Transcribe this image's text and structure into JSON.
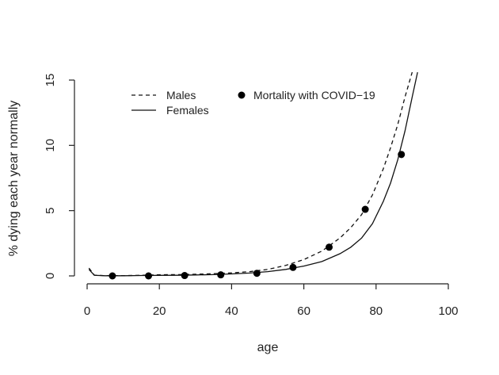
{
  "chart_data": {
    "type": "line",
    "xlabel": "age",
    "ylabel": "% dying each year normally",
    "xlim": [
      0,
      100
    ],
    "ylim": [
      0,
      15
    ],
    "x_ticks": [
      "0",
      "20",
      "40",
      "60",
      "80",
      "100"
    ],
    "y_ticks": [
      "0",
      "5",
      "10",
      "15"
    ],
    "legend_position": "top",
    "series": [
      {
        "name": "Males",
        "style": "dashed",
        "color": "#111111",
        "x": [
          0.5,
          2,
          5,
          10,
          15,
          20,
          25,
          30,
          35,
          40,
          45,
          50,
          55,
          60,
          65,
          70,
          73,
          76,
          79,
          82,
          84,
          86,
          88,
          90
        ],
        "y": [
          0.6,
          0.06,
          0.02,
          0.02,
          0.05,
          0.09,
          0.1,
          0.13,
          0.17,
          0.23,
          0.33,
          0.5,
          0.8,
          1.25,
          1.9,
          2.9,
          3.7,
          4.7,
          6.2,
          8.2,
          9.8,
          11.6,
          13.7,
          15.6
        ]
      },
      {
        "name": "Females",
        "style": "solid",
        "color": "#111111",
        "x": [
          0.5,
          2,
          5,
          10,
          15,
          20,
          25,
          30,
          35,
          40,
          45,
          50,
          55,
          60,
          65,
          70,
          73,
          76,
          79,
          82,
          84,
          86,
          88,
          90,
          91.5
        ],
        "y": [
          0.5,
          0.05,
          0.01,
          0.01,
          0.03,
          0.04,
          0.05,
          0.07,
          0.1,
          0.15,
          0.22,
          0.33,
          0.5,
          0.75,
          1.1,
          1.7,
          2.2,
          2.9,
          4.0,
          5.7,
          7.1,
          8.9,
          11.1,
          13.7,
          15.6
        ]
      },
      {
        "name": "Mortality with COVID−19",
        "style": "points",
        "color": "#000000",
        "x": [
          7,
          17,
          27,
          37,
          47,
          57,
          67,
          77,
          87
        ],
        "y": [
          0.0,
          0.0,
          0.03,
          0.08,
          0.2,
          0.65,
          2.2,
          5.1,
          9.3
        ]
      }
    ]
  }
}
